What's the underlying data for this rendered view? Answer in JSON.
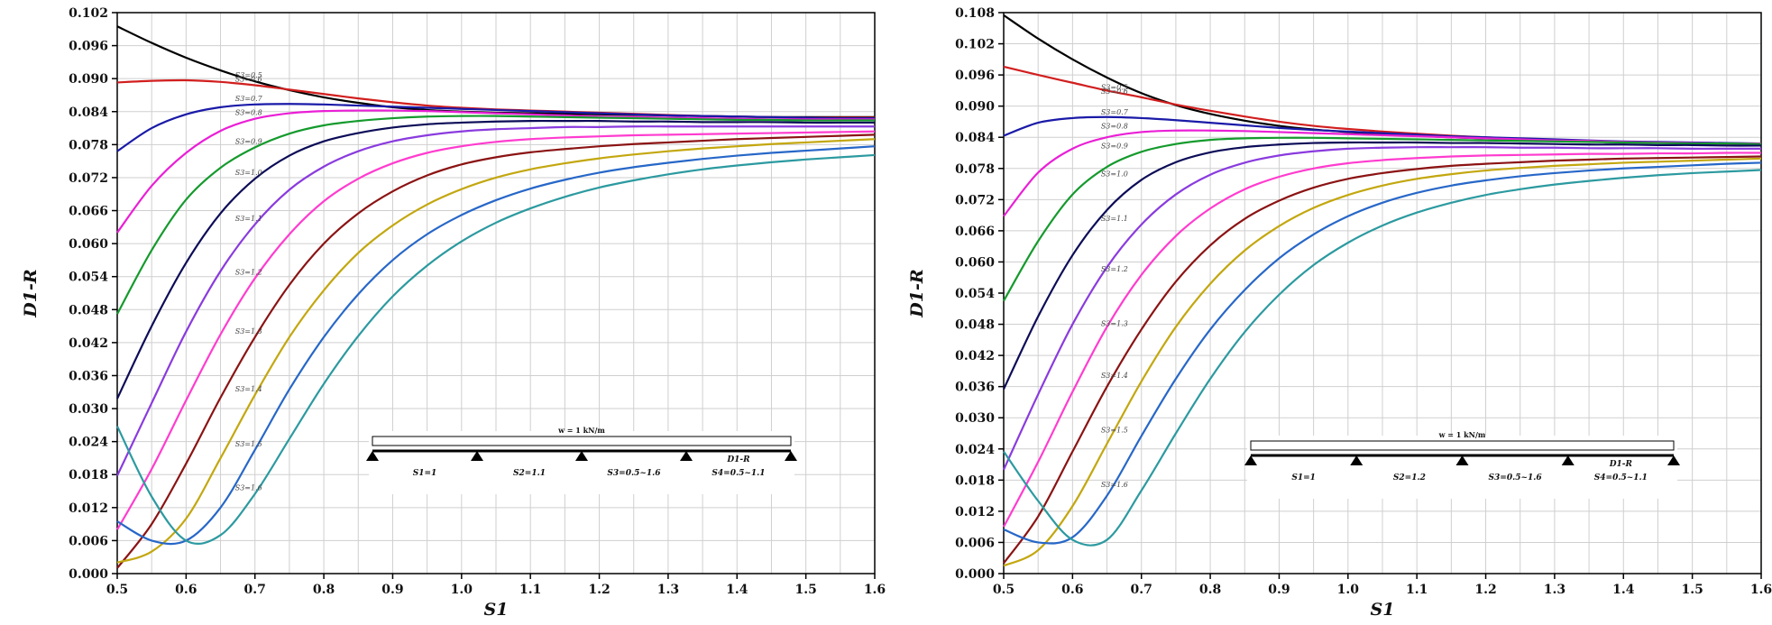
{
  "colors": {
    "series": [
      "#000000",
      "#d21e1e",
      "#1a1aa8",
      "#ea1fd6",
      "#159a2d",
      "#0c0c58",
      "#8a3bde",
      "#ff3ccf",
      "#8b1313",
      "#c3a70f",
      "#2767c8",
      "#2c9aa0"
    ],
    "grid": "#cfcfcf",
    "axis": "#000000",
    "beam": "#000000",
    "highlight_span": "#cc2222",
    "d1r_label": "#e02020"
  },
  "chart_data": [
    {
      "type": "line",
      "title": "",
      "xlabel": "S1",
      "ylabel": "D1-R",
      "xlim": [
        0.5,
        1.6
      ],
      "ylim": [
        0.0,
        0.102
      ],
      "grid": true,
      "x_ticks": [
        "0.5",
        "0.6",
        "0.7",
        "0.8",
        "0.9",
        "1.0",
        "1.1",
        "1.2",
        "1.3",
        "1.4",
        "1.5",
        "1.6"
      ],
      "y_ticks": [
        "0.000",
        "0.006",
        "0.012",
        "0.018",
        "0.024",
        "0.030",
        "0.036",
        "0.042",
        "0.048",
        "0.054",
        "0.060",
        "0.066",
        "0.072",
        "0.078",
        "0.084",
        "0.090",
        "0.096",
        "0.102"
      ],
      "x": [
        0.5,
        0.55,
        0.6,
        0.65,
        0.7,
        0.75,
        0.8,
        0.85,
        0.9,
        0.95,
        1.0,
        1.05,
        1.1,
        1.15,
        1.2,
        1.25,
        1.3,
        1.35,
        1.4,
        1.45,
        1.5,
        1.55,
        1.6
      ],
      "series": [
        {
          "name": "S3=0.5",
          "label_x": 0.7,
          "values": [
            0.0995,
            0.0965,
            0.0938,
            0.0915,
            0.0895,
            0.0879,
            0.0866,
            0.0856,
            0.0848,
            0.0843,
            0.084,
            0.0838,
            0.0837,
            0.0836,
            0.0835,
            0.0834,
            0.0833,
            0.0832,
            0.0831,
            0.083,
            0.083,
            0.083,
            0.083
          ]
        },
        {
          "name": "S3=0.6",
          "label_x": 0.7,
          "values": [
            0.0893,
            0.0896,
            0.0897,
            0.0894,
            0.0888,
            0.088,
            0.0872,
            0.0864,
            0.0857,
            0.0851,
            0.0847,
            0.0844,
            0.0842,
            0.084,
            0.0838,
            0.0836,
            0.0834,
            0.0832,
            0.0831,
            0.083,
            0.0829,
            0.0829,
            0.0829
          ]
        },
        {
          "name": "S3=0.7",
          "label_x": 0.7,
          "values": [
            0.0768,
            0.081,
            0.0835,
            0.0848,
            0.0853,
            0.0854,
            0.0853,
            0.0851,
            0.0849,
            0.0847,
            0.0845,
            0.0843,
            0.0841,
            0.0839,
            0.0837,
            0.0835,
            0.0833,
            0.0832,
            0.0831,
            0.083,
            0.0829,
            0.0828,
            0.0828
          ]
        },
        {
          "name": "S3=0.8",
          "label_x": 0.7,
          "values": [
            0.062,
            0.0705,
            0.0765,
            0.0805,
            0.0827,
            0.0837,
            0.0841,
            0.0842,
            0.0842,
            0.0841,
            0.0839,
            0.0837,
            0.0835,
            0.0833,
            0.0831,
            0.083,
            0.0829,
            0.0828,
            0.0827,
            0.0826,
            0.0826,
            0.0826,
            0.0826
          ]
        },
        {
          "name": "S3=0.9",
          "label_x": 0.7,
          "values": [
            0.0472,
            0.0588,
            0.068,
            0.0738,
            0.0775,
            0.08,
            0.0815,
            0.0823,
            0.0828,
            0.0831,
            0.0832,
            0.0832,
            0.0831,
            0.083,
            0.0829,
            0.0828,
            0.0827,
            0.0826,
            0.0825,
            0.0825,
            0.0824,
            0.0824,
            0.0824
          ]
        },
        {
          "name": "S3=1.0",
          "label_x": 0.7,
          "values": [
            0.0318,
            0.045,
            0.0565,
            0.0655,
            0.0718,
            0.076,
            0.0786,
            0.0801,
            0.0811,
            0.0817,
            0.082,
            0.0822,
            0.0823,
            0.0823,
            0.0823,
            0.0822,
            0.0822,
            0.0821,
            0.0821,
            0.0821,
            0.082,
            0.082,
            0.082
          ]
        },
        {
          "name": "S3=1.1",
          "label_x": 0.7,
          "values": [
            0.0178,
            0.031,
            0.044,
            0.055,
            0.0635,
            0.0698,
            0.074,
            0.0768,
            0.0786,
            0.0797,
            0.0804,
            0.0808,
            0.081,
            0.0812,
            0.0812,
            0.0813,
            0.0813,
            0.0813,
            0.0813,
            0.0813,
            0.0813,
            0.0813,
            0.0813
          ]
        },
        {
          "name": "S3=1.2",
          "label_x": 0.7,
          "values": [
            0.008,
            0.019,
            0.0315,
            0.0435,
            0.0537,
            0.0617,
            0.0677,
            0.0718,
            0.0746,
            0.0765,
            0.0777,
            0.0785,
            0.079,
            0.0793,
            0.0795,
            0.0797,
            0.0798,
            0.0799,
            0.08,
            0.0801,
            0.0802,
            0.0803,
            0.0804
          ]
        },
        {
          "name": "S3=1.3",
          "label_x": 0.7,
          "values": [
            0.001,
            0.009,
            0.02,
            0.032,
            0.043,
            0.0525,
            0.06,
            0.0655,
            0.0695,
            0.0724,
            0.0744,
            0.0757,
            0.0766,
            0.0772,
            0.0777,
            0.0781,
            0.0784,
            0.0787,
            0.079,
            0.0792,
            0.0794,
            0.0796,
            0.0798
          ]
        },
        {
          "name": "S3=1.4",
          "label_x": 0.7,
          "values": [
            0.002,
            0.004,
            0.01,
            0.021,
            0.0325,
            0.043,
            0.0515,
            0.0583,
            0.0633,
            0.0671,
            0.0699,
            0.072,
            0.0735,
            0.0746,
            0.0755,
            0.0762,
            0.0768,
            0.0773,
            0.0777,
            0.0781,
            0.0784,
            0.0787,
            0.079
          ]
        },
        {
          "name": "S3=1.5",
          "label_x": 0.7,
          "values": [
            0.0095,
            0.006,
            0.006,
            0.012,
            0.0225,
            0.0335,
            0.043,
            0.0508,
            0.057,
            0.0617,
            0.0652,
            0.0679,
            0.07,
            0.0716,
            0.0729,
            0.0739,
            0.0747,
            0.0754,
            0.076,
            0.0765,
            0.0769,
            0.0773,
            0.0777
          ]
        },
        {
          "name": "S3=1.6",
          "label_x": 0.7,
          "values": [
            0.0268,
            0.014,
            0.006,
            0.007,
            0.0145,
            0.0245,
            0.0345,
            0.0432,
            0.0504,
            0.056,
            0.0604,
            0.0638,
            0.0664,
            0.0685,
            0.0702,
            0.0715,
            0.0726,
            0.0735,
            0.0742,
            0.0748,
            0.0753,
            0.0757,
            0.0761
          ]
        }
      ],
      "annotation": {
        "load": "w = 1 kN/m",
        "spans": [
          "S1=1",
          "S2=1.1",
          "S3=0.5~1.6",
          "S4=0.5~1.1"
        ],
        "marker": "D1-R"
      }
    },
    {
      "type": "line",
      "title": "",
      "xlabel": "S1",
      "ylabel": "D1-R",
      "xlim": [
        0.5,
        1.6
      ],
      "ylim": [
        0.0,
        0.108
      ],
      "grid": true,
      "x_ticks": [
        "0.5",
        "0.6",
        "0.7",
        "0.8",
        "0.9",
        "1.0",
        "1.1",
        "1.2",
        "1.3",
        "1.4",
        "1.5",
        "1.6"
      ],
      "y_ticks": [
        "0.000",
        "0.006",
        "0.012",
        "0.018",
        "0.024",
        "0.030",
        "0.036",
        "0.042",
        "0.048",
        "0.054",
        "0.060",
        "0.066",
        "0.072",
        "0.078",
        "0.084",
        "0.090",
        "0.096",
        "0.102",
        "0.108"
      ],
      "x": [
        0.5,
        0.55,
        0.6,
        0.65,
        0.7,
        0.75,
        0.8,
        0.85,
        0.9,
        0.95,
        1.0,
        1.05,
        1.1,
        1.15,
        1.2,
        1.25,
        1.3,
        1.35,
        1.4,
        1.45,
        1.5,
        1.55,
        1.6
      ],
      "series": [
        {
          "name": "S3=0.5",
          "label_x": 0.67,
          "values": [
            0.1075,
            0.103,
            0.099,
            0.0955,
            0.0925,
            0.0902,
            0.0885,
            0.0872,
            0.0862,
            0.0855,
            0.085,
            0.0846,
            0.0843,
            0.084,
            0.0838,
            0.0836,
            0.0834,
            0.0832,
            0.0831,
            0.083,
            0.0829,
            0.0828,
            0.0828
          ]
        },
        {
          "name": "S3=0.6",
          "label_x": 0.67,
          "values": [
            0.0976,
            0.096,
            0.0945,
            0.093,
            0.0917,
            0.0903,
            0.0891,
            0.088,
            0.087,
            0.0862,
            0.0856,
            0.0851,
            0.0847,
            0.0843,
            0.084,
            0.0837,
            0.0835,
            0.0833,
            0.0831,
            0.083,
            0.0829,
            0.0828,
            0.0828
          ]
        },
        {
          "name": "S3=0.7",
          "label_x": 0.67,
          "values": [
            0.0843,
            0.0868,
            0.0877,
            0.0879,
            0.0877,
            0.0873,
            0.0868,
            0.0863,
            0.0858,
            0.0854,
            0.0851,
            0.0848,
            0.0845,
            0.0842,
            0.084,
            0.0838,
            0.0836,
            0.0834,
            0.0832,
            0.0831,
            0.083,
            0.0829,
            0.0828
          ]
        },
        {
          "name": "S3=0.8",
          "label_x": 0.67,
          "values": [
            0.0688,
            0.0772,
            0.0818,
            0.084,
            0.085,
            0.0853,
            0.0853,
            0.0852,
            0.085,
            0.0848,
            0.0846,
            0.0844,
            0.0842,
            0.084,
            0.0838,
            0.0836,
            0.0834,
            0.0833,
            0.0831,
            0.083,
            0.0829,
            0.0828,
            0.0828
          ]
        },
        {
          "name": "S3=0.9",
          "label_x": 0.67,
          "values": [
            0.0525,
            0.064,
            0.073,
            0.0783,
            0.0812,
            0.0827,
            0.0835,
            0.0838,
            0.0839,
            0.0839,
            0.0838,
            0.0837,
            0.0836,
            0.0835,
            0.0834,
            0.0833,
            0.0832,
            0.0831,
            0.083,
            0.0829,
            0.0828,
            0.0828,
            0.0827
          ]
        },
        {
          "name": "S3=1.0",
          "label_x": 0.67,
          "values": [
            0.0355,
            0.0495,
            0.0613,
            0.07,
            0.0758,
            0.0792,
            0.0811,
            0.0821,
            0.0826,
            0.0829,
            0.083,
            0.083,
            0.083,
            0.0829,
            0.0829,
            0.0828,
            0.0827,
            0.0826,
            0.0826,
            0.0825,
            0.0825,
            0.0824,
            0.0824
          ]
        },
        {
          "name": "S3=1.1",
          "label_x": 0.67,
          "values": [
            0.02,
            0.0345,
            0.048,
            0.059,
            0.0672,
            0.073,
            0.0768,
            0.0791,
            0.0805,
            0.0813,
            0.0818,
            0.082,
            0.0821,
            0.0821,
            0.0821,
            0.082,
            0.082,
            0.0819,
            0.0819,
            0.0819,
            0.0818,
            0.0818,
            0.0818
          ]
        },
        {
          "name": "S3=1.2",
          "label_x": 0.67,
          "values": [
            0.009,
            0.0215,
            0.035,
            0.0475,
            0.0575,
            0.065,
            0.0703,
            0.074,
            0.0764,
            0.078,
            0.079,
            0.0796,
            0.08,
            0.0803,
            0.0805,
            0.0806,
            0.0807,
            0.0808,
            0.0808,
            0.0809,
            0.0809,
            0.081,
            0.081
          ]
        },
        {
          "name": "S3=1.3",
          "label_x": 0.67,
          "values": [
            0.002,
            0.011,
            0.0235,
            0.036,
            0.047,
            0.0562,
            0.0632,
            0.0683,
            0.0718,
            0.0743,
            0.076,
            0.0771,
            0.0779,
            0.0785,
            0.0789,
            0.0792,
            0.0795,
            0.0797,
            0.0799,
            0.08,
            0.0801,
            0.0802,
            0.0803
          ]
        },
        {
          "name": "S3=1.4",
          "label_x": 0.67,
          "values": [
            0.0015,
            0.0045,
            0.013,
            0.025,
            0.037,
            0.0475,
            0.0558,
            0.0622,
            0.0669,
            0.0704,
            0.0729,
            0.0747,
            0.076,
            0.0769,
            0.0776,
            0.0781,
            0.0785,
            0.0788,
            0.0791,
            0.0793,
            0.0795,
            0.0797,
            0.0799
          ]
        },
        {
          "name": "S3=1.5",
          "label_x": 0.67,
          "values": [
            0.0085,
            0.006,
            0.007,
            0.015,
            0.0265,
            0.0375,
            0.047,
            0.0546,
            0.0607,
            0.0653,
            0.0688,
            0.0714,
            0.0733,
            0.0747,
            0.0757,
            0.0765,
            0.0771,
            0.0776,
            0.078,
            0.0783,
            0.0786,
            0.0789,
            0.0791
          ]
        },
        {
          "name": "S3=1.6",
          "label_x": 0.67,
          "values": [
            0.0235,
            0.014,
            0.0065,
            0.0065,
            0.016,
            0.027,
            0.0375,
            0.0465,
            0.0537,
            0.0594,
            0.0637,
            0.067,
            0.0695,
            0.0714,
            0.0729,
            0.074,
            0.0749,
            0.0756,
            0.0762,
            0.0767,
            0.0771,
            0.0774,
            0.0777
          ]
        }
      ],
      "annotation": {
        "load": "w = 1 kN/m",
        "spans": [
          "S1=1",
          "S2=1.2",
          "S3=0.5~1.6",
          "S4=0.5~1.1"
        ],
        "marker": "D1-R"
      }
    }
  ]
}
